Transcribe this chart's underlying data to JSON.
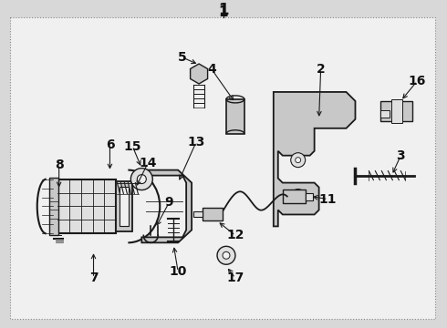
{
  "bg_color": "#d8d8d8",
  "border_color": "#666666",
  "line_color": "#1a1a1a",
  "text_color": "#111111",
  "fig_width": 4.9,
  "fig_height": 3.6,
  "dpi": 100,
  "inner_bg": "#f0f0f0",
  "part_fill": "#c8c8c8",
  "part_fill2": "#e0e0e0"
}
